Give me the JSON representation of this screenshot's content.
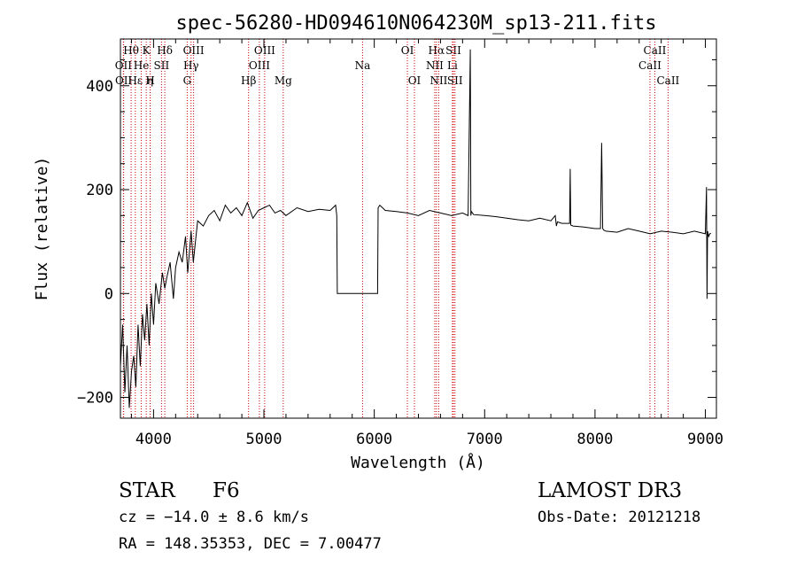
{
  "chart_data": {
    "type": "line",
    "title": "spec-56280-HD094610N064230M_sp13-211.fits",
    "xlabel": "Wavelength (Å)",
    "ylabel": "Flux (relative)",
    "xlim": [
      3700,
      9100
    ],
    "ylim": [
      -240,
      490
    ],
    "xticks": [
      4000,
      5000,
      6000,
      7000,
      8000,
      9000
    ],
    "yticks": [
      -200,
      0,
      200,
      400
    ],
    "grid": false,
    "line_color": "#000000",
    "marker_color": "#cc0000",
    "series": [
      {
        "name": "flux",
        "x": [
          3700,
          3720,
          3740,
          3760,
          3780,
          3800,
          3820,
          3840,
          3860,
          3880,
          3900,
          3920,
          3940,
          3960,
          3980,
          4000,
          4020,
          4050,
          4080,
          4102,
          4120,
          4150,
          4180,
          4200,
          4230,
          4260,
          4290,
          4310,
          4340,
          4360,
          4380,
          4400,
          4450,
          4500,
          4550,
          4600,
          4650,
          4700,
          4750,
          4800,
          4850,
          4900,
          4950,
          5000,
          5050,
          5100,
          5150,
          5200,
          5300,
          5400,
          5500,
          5600,
          5650,
          5660,
          5665,
          6030,
          6035,
          6050,
          6100,
          6200,
          6300,
          6400,
          6500,
          6600,
          6700,
          6800,
          6850,
          6870,
          6875,
          6880,
          6900,
          7000,
          7100,
          7200,
          7300,
          7400,
          7500,
          7600,
          7640,
          7650,
          7660,
          7700,
          7770,
          7775,
          7780,
          7800,
          7900,
          8000,
          8050,
          8060,
          8070,
          8080,
          8100,
          8200,
          8300,
          8400,
          8500,
          8600,
          8700,
          8800,
          8900,
          9000,
          9010,
          9015,
          9020,
          9030,
          9040,
          9050
        ],
        "y": [
          -140,
          -60,
          -190,
          -100,
          -220,
          -150,
          -120,
          -180,
          -60,
          -140,
          -40,
          -90,
          -20,
          -100,
          0,
          -60,
          20,
          -20,
          40,
          10,
          30,
          60,
          -10,
          50,
          80,
          60,
          110,
          40,
          120,
          60,
          100,
          140,
          130,
          150,
          160,
          140,
          170,
          155,
          165,
          150,
          175,
          145,
          160,
          165,
          170,
          155,
          160,
          150,
          165,
          158,
          162,
          160,
          170,
          150,
          0,
          0,
          165,
          170,
          160,
          158,
          155,
          150,
          160,
          155,
          150,
          155,
          150,
          470,
          150,
          158,
          152,
          150,
          148,
          145,
          142,
          140,
          145,
          140,
          150,
          130,
          138,
          135,
          135,
          240,
          132,
          130,
          128,
          125,
          125,
          290,
          125,
          122,
          120,
          118,
          125,
          120,
          115,
          120,
          118,
          115,
          120,
          115,
          205,
          -10,
          120,
          110,
          115,
          116
        ]
      }
    ],
    "line_markers": [
      {
        "label": "Hθ",
        "x": 3797,
        "row": 0
      },
      {
        "label": "OII",
        "x": 3727,
        "row": 1
      },
      {
        "label": "OII",
        "x": 3729,
        "row": 2
      },
      {
        "label": "Hε",
        "x": 3835,
        "row": 2
      },
      {
        "label": "He",
        "x": 3889,
        "row": 1
      },
      {
        "label": "K",
        "x": 3934,
        "row": 0
      },
      {
        "label": "η",
        "x": 3969,
        "row": 2
      },
      {
        "label": "H",
        "x": 3970,
        "row": 2
      },
      {
        "label": "SII",
        "x": 4072,
        "row": 1
      },
      {
        "label": "Hδ",
        "x": 4102,
        "row": 0
      },
      {
        "label": "OIII",
        "x": 4363,
        "row": 0
      },
      {
        "label": "Hγ",
        "x": 4340,
        "row": 1
      },
      {
        "label": "G",
        "x": 4305,
        "row": 2
      },
      {
        "label": "Hβ",
        "x": 4861,
        "row": 2
      },
      {
        "label": "OIII",
        "x": 4959,
        "row": 1
      },
      {
        "label": "OIII",
        "x": 5007,
        "row": 0
      },
      {
        "label": "Mg",
        "x": 5175,
        "row": 2
      },
      {
        "label": "Na",
        "x": 5894,
        "row": 1
      },
      {
        "label": "OI",
        "x": 6300,
        "row": 0
      },
      {
        "label": "OI",
        "x": 6364,
        "row": 2
      },
      {
        "label": "Hα",
        "x": 6563,
        "row": 0
      },
      {
        "label": "NII",
        "x": 6548,
        "row": 1
      },
      {
        "label": "NII",
        "x": 6584,
        "row": 2
      },
      {
        "label": "SII",
        "x": 6717,
        "row": 0
      },
      {
        "label": "Li",
        "x": 6708,
        "row": 1
      },
      {
        "label": "SII",
        "x": 6731,
        "row": 2
      },
      {
        "label": "CaII",
        "x": 8542,
        "row": 0
      },
      {
        "label": "CaII",
        "x": 8498,
        "row": 1
      },
      {
        "label": "CaII",
        "x": 8662,
        "row": 2
      }
    ]
  },
  "info": {
    "object_type": "STAR",
    "subclass": "F6",
    "survey": "LAMOST DR3",
    "cz": "cz = −14.0 ± 8.6 km/s",
    "obs_date": "Obs-Date: 20121218",
    "coords": "RA = 148.35353, DEC =    7.00477"
  }
}
